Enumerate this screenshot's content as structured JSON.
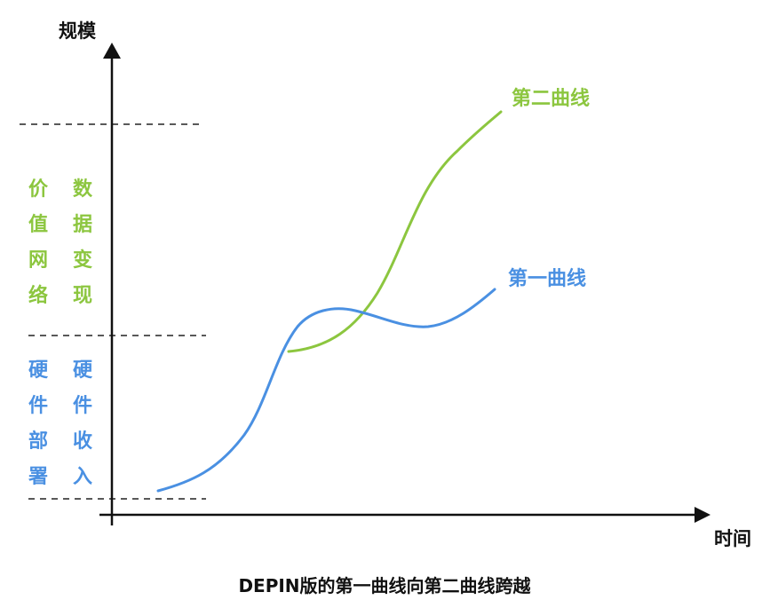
{
  "axes": {
    "y_label": "规模",
    "x_label": "时间"
  },
  "curves": {
    "first": {
      "label": "第一曲线",
      "color": "#4a90e2"
    },
    "second": {
      "label": "第二曲线",
      "color": "#8cc63f"
    }
  },
  "levels": {
    "upper_green": {
      "left_text": "价值网络",
      "right_text": "数据变现",
      "color": "#8cc63f"
    },
    "lower_blue": {
      "left_text": "硬件部署",
      "right_text": "硬件收入",
      "color": "#4a90e2"
    }
  },
  "caption": "DEPIN版的第一曲线向第二曲线跨越"
}
